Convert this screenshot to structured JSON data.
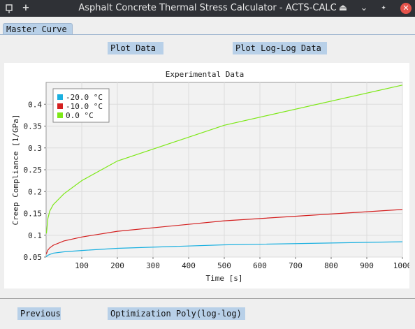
{
  "window": {
    "title": "Asphalt Concrete Thermal Stress Calculator - ACTS-CALC",
    "pin_icon": "pin-icon",
    "add_icon": "plus-icon",
    "controls": [
      "eject-icon",
      "chevron-down-icon",
      "diamond-icon",
      "close-icon"
    ],
    "add_symbol": "+",
    "eject_symbol": "⏏",
    "min_symbol": "⌄",
    "float_symbol": "✦",
    "close_symbol": "✕"
  },
  "tabs": [
    {
      "label": "Master Curve"
    }
  ],
  "toolbar": {
    "plot_data_label": "Plot Data",
    "plot_loglog_label": "Plot Log-Log Data"
  },
  "footer": {
    "previous_label": "Previous",
    "optimization_label": "Optimization Poly(log-log)"
  },
  "chart_data": {
    "type": "line",
    "title": "Experimental Data",
    "xlabel": "Time [s]",
    "ylabel": "Creep Compliance [1/GPa]",
    "xlim": [
      0,
      1000
    ],
    "ylim": [
      0.05,
      0.45
    ],
    "xticks": [
      100,
      200,
      300,
      400,
      500,
      600,
      700,
      800,
      900,
      1000
    ],
    "yticks": [
      0.05,
      0.1,
      0.15,
      0.2,
      0.25,
      0.3,
      0.35,
      0.4
    ],
    "xtick_labels": [
      "100",
      "200",
      "300",
      "400",
      "500",
      "600",
      "700",
      "800",
      "900",
      "1000"
    ],
    "ytick_labels": [
      "0.05",
      "0.1",
      "0.15",
      "0.2",
      "0.25",
      "0.3",
      "0.35",
      "0.4"
    ],
    "grid": true,
    "legend_position": "top-left",
    "series": [
      {
        "name": "-20.0 °C",
        "color": "#1ab0e0",
        "x": [
          1,
          5,
          10,
          20,
          50,
          100,
          200,
          500,
          1000
        ],
        "y": [
          0.051,
          0.054,
          0.056,
          0.059,
          0.062,
          0.065,
          0.07,
          0.078,
          0.085
        ]
      },
      {
        "name": "-10.0 °C",
        "color": "#d42020",
        "x": [
          1,
          5,
          10,
          20,
          50,
          100,
          200,
          500,
          1000
        ],
        "y": [
          0.058,
          0.066,
          0.071,
          0.077,
          0.087,
          0.096,
          0.109,
          0.133,
          0.159
        ]
      },
      {
        "name": "0.0 °C",
        "color": "#7de817",
        "x": [
          1,
          5,
          10,
          20,
          50,
          100,
          200,
          500,
          1000
        ],
        "y": [
          0.105,
          0.138,
          0.155,
          0.17,
          0.195,
          0.225,
          0.27,
          0.352,
          0.444
        ]
      }
    ]
  }
}
